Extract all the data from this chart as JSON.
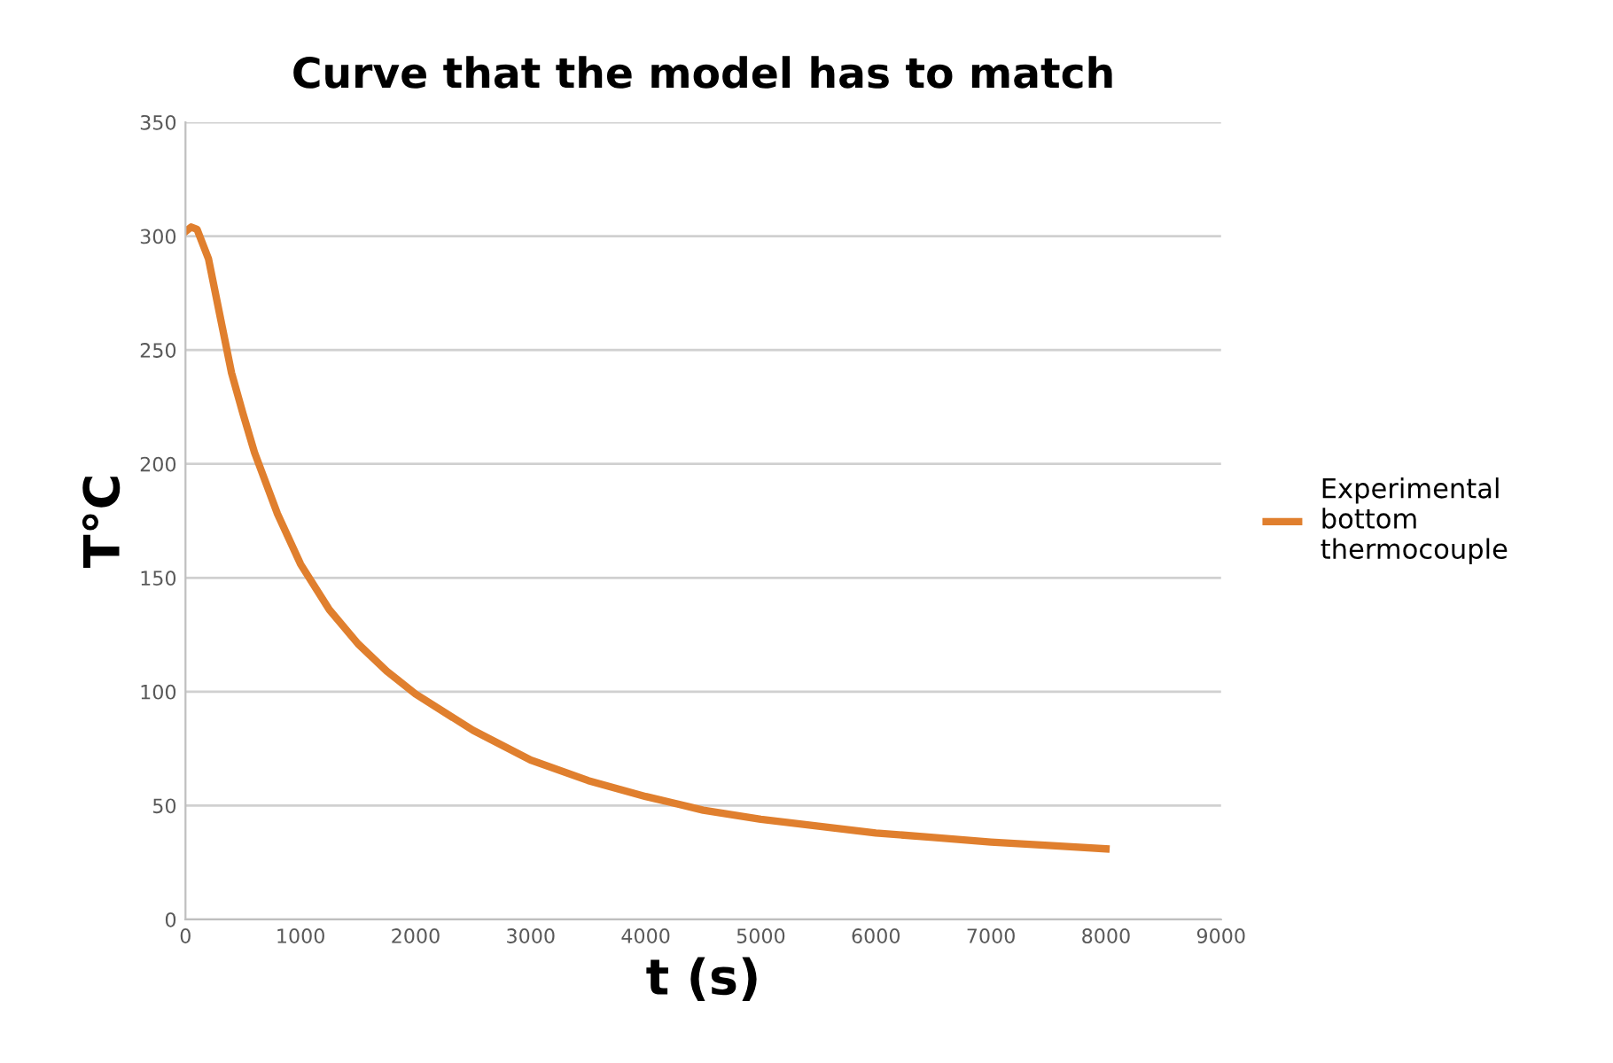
{
  "chart_data": {
    "type": "line",
    "title": "Curve that the model has to match",
    "xlabel": "t (s)",
    "ylabel": "T°C",
    "x": [
      0,
      50,
      100,
      200,
      300,
      400,
      500,
      600,
      800,
      1000,
      1250,
      1500,
      1750,
      2000,
      2500,
      3000,
      3500,
      4000,
      4500,
      5000,
      5500,
      6000,
      6500,
      7000,
      7500,
      8000
    ],
    "series": [
      {
        "name": "Experimental bottom thermocouple",
        "color": "#e07f2e",
        "values": [
          302,
          304,
          303,
          290,
          265,
          240,
          222,
          205,
          178,
          156,
          136,
          121,
          109,
          99,
          83,
          70,
          61,
          54,
          48,
          44,
          41,
          38,
          36,
          34,
          32.5,
          31
        ]
      }
    ],
    "xlim": [
      0,
      9000
    ],
    "xticks": [
      0,
      1000,
      2000,
      3000,
      4000,
      5000,
      6000,
      7000,
      8000,
      9000
    ],
    "ylim": [
      0,
      350
    ],
    "yticks": [
      0,
      50,
      100,
      150,
      200,
      250,
      300,
      350
    ],
    "grid": "y",
    "legend": "right",
    "marker": "none",
    "line_style": "solid"
  }
}
